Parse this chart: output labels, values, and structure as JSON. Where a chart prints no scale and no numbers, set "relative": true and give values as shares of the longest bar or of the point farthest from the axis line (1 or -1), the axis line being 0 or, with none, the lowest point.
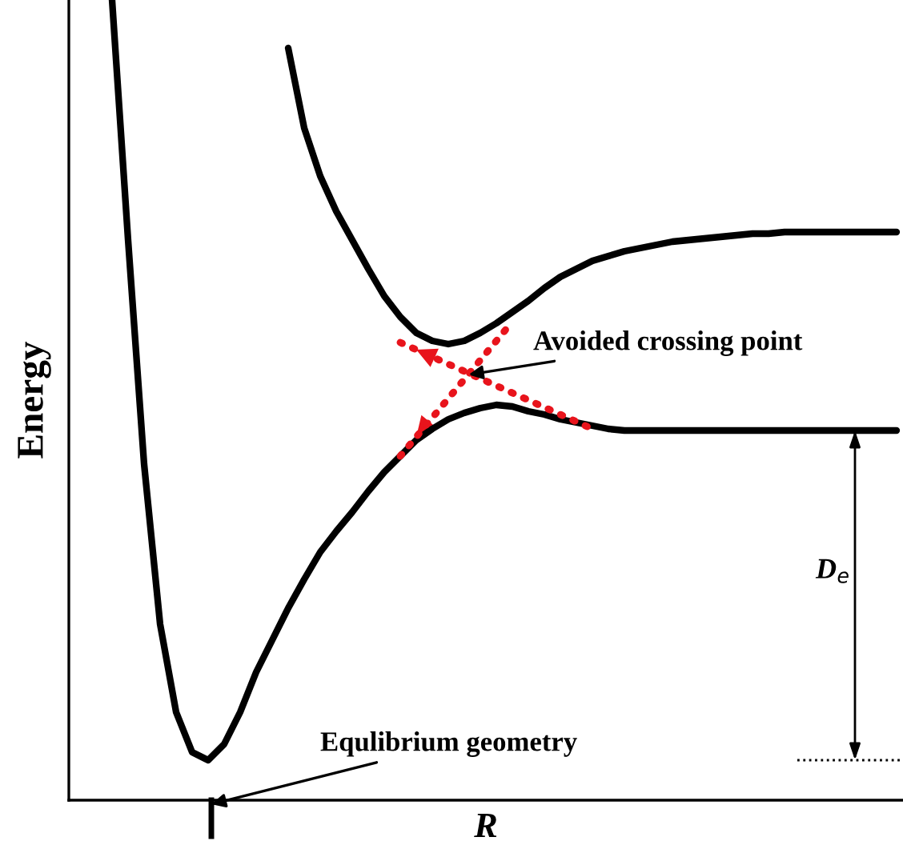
{
  "chart_data": {
    "type": "line",
    "relative": true,
    "xlabel": "R",
    "ylabel": "Energy",
    "categories": [
      null,
      null,
      null,
      null,
      null,
      null,
      null,
      null,
      null,
      null,
      null,
      null,
      null,
      null,
      null,
      null,
      null,
      null,
      null,
      null,
      null,
      null,
      null,
      null,
      null,
      null,
      null,
      null,
      null,
      null,
      null,
      null,
      null,
      null,
      null,
      null,
      null,
      null,
      null,
      null,
      null,
      null,
      null,
      null,
      null,
      null,
      null,
      null,
      null,
      null,
      null,
      null
    ],
    "series": [
      {
        "color": "#000000",
        "line_style": "solid",
        "values": [
          null,
          null,
          1.0,
          0.7,
          0.42,
          0.22,
          0.11,
          0.06,
          0.05,
          0.07,
          0.11,
          0.16,
          0.2,
          0.24,
          0.276,
          0.31,
          0.336,
          0.36,
          0.386,
          0.41,
          0.43,
          0.45,
          0.464,
          0.476,
          0.484,
          0.49,
          0.494,
          0.492,
          0.486,
          0.482,
          0.476,
          0.472,
          0.468,
          0.464,
          0.462,
          0.462,
          0.462,
          0.462,
          0.462,
          0.462,
          0.462,
          0.462,
          0.462,
          0.462,
          0.462,
          0.462,
          0.462,
          0.462,
          0.462,
          0.462,
          0.462,
          0.462
        ]
      },
      {
        "color": "#000000",
        "line_style": "solid",
        "values": [
          null,
          null,
          null,
          null,
          null,
          null,
          null,
          null,
          null,
          null,
          null,
          null,
          null,
          0.94,
          0.84,
          0.78,
          0.736,
          0.7,
          0.664,
          0.63,
          0.604,
          0.584,
          0.574,
          0.57,
          0.574,
          0.584,
          0.596,
          0.61,
          0.624,
          0.64,
          0.654,
          0.664,
          0.674,
          0.68,
          0.686,
          0.69,
          0.694,
          0.698,
          0.7,
          0.702,
          0.704,
          0.706,
          0.708,
          0.708,
          0.71,
          0.71,
          0.71,
          0.71,
          0.71,
          0.71,
          0.71,
          0.71
        ]
      },
      {
        "color": "#e8141c",
        "line_style": "dotted",
        "values": [
          null,
          null,
          null,
          null,
          null,
          null,
          null,
          null,
          null,
          null,
          null,
          null,
          null,
          null,
          null,
          null,
          null,
          null,
          null,
          null,
          0.572,
          0.563,
          0.554,
          0.545,
          0.536,
          0.527,
          0.518,
          0.509,
          0.5,
          0.491,
          0.482,
          0.473,
          0.464,
          null,
          null,
          null,
          null,
          null,
          null,
          null,
          null,
          null,
          null,
          null,
          null,
          null,
          null,
          null,
          null,
          null,
          null,
          null
        ]
      },
      {
        "color": "#e8141c",
        "line_style": "dotted",
        "values": [
          null,
          null,
          null,
          null,
          null,
          null,
          null,
          null,
          null,
          null,
          null,
          null,
          null,
          null,
          null,
          null,
          null,
          null,
          null,
          null,
          0.43,
          0.454,
          0.478,
          0.502,
          0.526,
          0.55,
          0.574,
          0.598,
          null,
          null,
          null,
          null,
          null,
          null,
          null,
          null,
          null,
          null,
          null,
          null,
          null,
          null,
          null,
          null,
          null,
          null,
          null,
          null,
          null,
          null,
          null,
          null
        ]
      }
    ],
    "annotations": [
      "Avoided crossing point",
      "Equlibrium geometry",
      "D$_{e}$"
    ]
  }
}
